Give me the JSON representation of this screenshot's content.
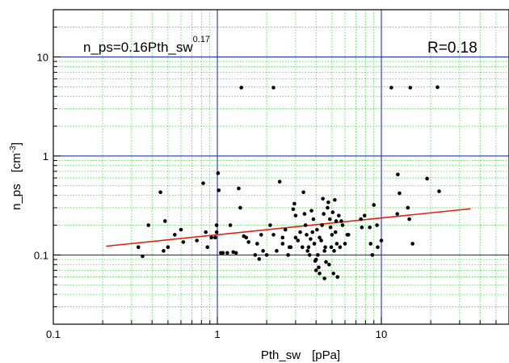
{
  "chart_data": {
    "type": "scatter",
    "xlabel": "Pth_sw [pPa]",
    "xlabel_parts": {
      "name": "Pth_sw",
      "unit": "[pPa]"
    },
    "ylabel_parts": {
      "name": "n_ps",
      "unit_base": "[cm",
      "unit_exp": "-3",
      "unit_close": "]"
    },
    "x_scale": "log",
    "y_scale": "log",
    "xlim": [
      0.1,
      60
    ],
    "ylim": [
      0.02,
      30
    ],
    "x_ticks": [
      {
        "value": 0.1,
        "label": "0.1"
      },
      {
        "value": 1,
        "label": "1"
      },
      {
        "value": 10,
        "label": "10"
      }
    ],
    "y_ticks": [
      {
        "value": 0.1,
        "label": "0.1"
      },
      {
        "value": 1,
        "label": "1"
      },
      {
        "value": 10,
        "label": "10"
      }
    ],
    "grid": {
      "major": true,
      "minor": true,
      "major_color": "#2233bb",
      "minor_color": "#33dd33"
    },
    "annotations": {
      "equation_base": "n_ps=0.16Pth_sw",
      "equation_exp": "0.17",
      "r_value": "R=0.18"
    },
    "fit": {
      "coefficient": 0.16,
      "exponent": 0.17,
      "x_range": [
        0.21,
        35
      ],
      "color": "#e02010"
    },
    "point_color": "#000000",
    "points": [
      [
        0.33,
        0.12
      ],
      [
        0.35,
        0.097
      ],
      [
        0.38,
        0.2
      ],
      [
        0.45,
        0.43
      ],
      [
        0.47,
        0.11
      ],
      [
        0.48,
        0.22
      ],
      [
        0.5,
        0.12
      ],
      [
        0.55,
        0.16
      ],
      [
        0.6,
        0.18
      ],
      [
        0.62,
        0.135
      ],
      [
        0.75,
        0.14
      ],
      [
        0.82,
        0.53
      ],
      [
        0.85,
        0.17
      ],
      [
        0.87,
        0.12
      ],
      [
        0.92,
        0.15
      ],
      [
        0.97,
        0.15
      ],
      [
        0.99,
        0.2
      ],
      [
        0.99,
        0.17
      ],
      [
        1.01,
        0.67
      ],
      [
        1.02,
        0.45
      ],
      [
        1.05,
        0.105
      ],
      [
        1.08,
        0.105
      ],
      [
        1.15,
        0.105
      ],
      [
        1.2,
        0.2
      ],
      [
        1.25,
        0.107
      ],
      [
        1.3,
        0.105
      ],
      [
        1.35,
        0.47
      ],
      [
        1.38,
        0.3
      ],
      [
        1.4,
        4.9
      ],
      [
        1.45,
        0.155
      ],
      [
        1.5,
        0.15
      ],
      [
        1.55,
        0.135
      ],
      [
        1.7,
        0.1
      ],
      [
        1.75,
        0.13
      ],
      [
        1.8,
        0.091
      ],
      [
        1.85,
        0.16
      ],
      [
        1.9,
        0.11
      ],
      [
        2.0,
        0.1
      ],
      [
        2.1,
        0.2
      ],
      [
        2.2,
        4.9
      ],
      [
        2.2,
        0.16
      ],
      [
        2.3,
        0.11
      ],
      [
        2.4,
        0.55
      ],
      [
        2.5,
        0.15
      ],
      [
        2.5,
        0.13
      ],
      [
        2.6,
        0.18
      ],
      [
        2.7,
        0.1
      ],
      [
        2.75,
        0.12
      ],
      [
        2.8,
        0.12
      ],
      [
        2.9,
        0.29
      ],
      [
        2.95,
        0.33
      ],
      [
        3.0,
        0.25
      ],
      [
        3.0,
        0.15
      ],
      [
        3.1,
        0.14
      ],
      [
        3.2,
        0.17
      ],
      [
        3.3,
        0.12
      ],
      [
        3.35,
        0.43
      ],
      [
        3.4,
        0.26
      ],
      [
        3.45,
        0.2
      ],
      [
        3.5,
        0.16
      ],
      [
        3.55,
        0.11
      ],
      [
        3.6,
        0.12
      ],
      [
        3.65,
        0.1
      ],
      [
        3.7,
        0.145
      ],
      [
        3.75,
        0.28
      ],
      [
        3.8,
        0.17
      ],
      [
        3.85,
        0.23
      ],
      [
        3.9,
        0.13
      ],
      [
        3.95,
        0.087
      ],
      [
        4.0,
        0.09
      ],
      [
        4.0,
        0.07
      ],
      [
        4.05,
        0.18
      ],
      [
        4.1,
        0.1
      ],
      [
        4.15,
        0.075
      ],
      [
        4.2,
        0.15
      ],
      [
        4.2,
        0.065
      ],
      [
        4.3,
        0.14
      ],
      [
        4.35,
        0.2
      ],
      [
        4.4,
        0.37
      ],
      [
        4.45,
        0.26
      ],
      [
        4.5,
        0.11
      ],
      [
        4.5,
        0.058
      ],
      [
        4.55,
        0.12
      ],
      [
        4.6,
        0.085
      ],
      [
        4.7,
        0.3
      ],
      [
        4.75,
        0.34
      ],
      [
        4.8,
        0.08
      ],
      [
        4.85,
        0.23
      ],
      [
        4.9,
        0.19
      ],
      [
        4.95,
        0.12
      ],
      [
        5.0,
        0.16
      ],
      [
        5.05,
        0.27
      ],
      [
        5.1,
        0.065
      ],
      [
        5.15,
        0.11
      ],
      [
        5.2,
        0.36
      ],
      [
        5.25,
        0.17
      ],
      [
        5.3,
        0.22
      ],
      [
        5.35,
        0.13
      ],
      [
        5.4,
        0.06
      ],
      [
        5.5,
        0.25
      ],
      [
        5.6,
        0.12
      ],
      [
        5.7,
        0.22
      ],
      [
        5.8,
        0.2
      ],
      [
        6.0,
        0.13
      ],
      [
        6.2,
        0.16
      ],
      [
        6.3,
        0.16
      ],
      [
        7.5,
        0.23
      ],
      [
        7.6,
        0.19
      ],
      [
        7.9,
        0.25
      ],
      [
        8.5,
        0.19
      ],
      [
        8.6,
        0.13
      ],
      [
        8.8,
        0.1
      ],
      [
        9.0,
        0.32
      ],
      [
        9.4,
        0.2
      ],
      [
        9.5,
        0.12
      ],
      [
        10.0,
        0.14
      ],
      [
        11.5,
        4.9
      ],
      [
        12.5,
        0.26
      ],
      [
        12.6,
        0.65
      ],
      [
        12.9,
        0.42
      ],
      [
        14.5,
        0.3
      ],
      [
        14.8,
        0.23
      ],
      [
        15.0,
        4.9
      ],
      [
        15.5,
        0.13
      ],
      [
        19.0,
        0.59
      ],
      [
        22.0,
        4.95
      ],
      [
        22.5,
        0.44
      ]
    ]
  }
}
